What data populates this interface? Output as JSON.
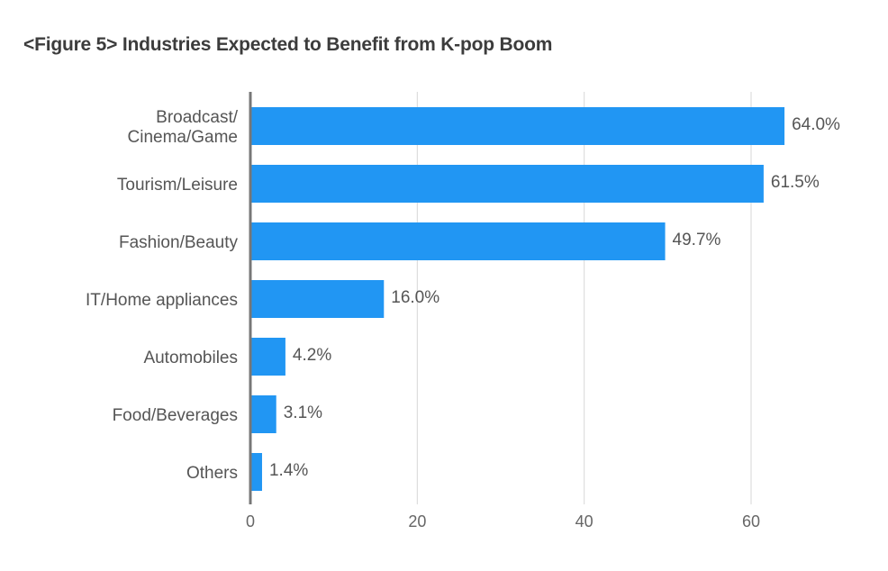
{
  "chart_data": {
    "type": "bar",
    "orientation": "horizontal",
    "title": "<Figure 5> Industries Expected to Benefit from K-pop Boom",
    "categories": [
      "Broadcast/\nCinema/Game",
      "Tourism/Leisure",
      "Fashion/Beauty",
      "IT/Home appliances",
      "Automobiles",
      "Food/Beverages",
      "Others"
    ],
    "values": [
      64.0,
      61.5,
      49.7,
      16.0,
      4.2,
      3.1,
      1.4
    ],
    "value_labels": [
      "64.0%",
      "61.5%",
      "49.7%",
      "16.0%",
      "4.2%",
      "3.1%",
      "1.4%"
    ],
    "x_ticks": [
      0,
      20,
      40,
      60
    ],
    "xlim": [
      0,
      70
    ],
    "grid": true,
    "bar_color": "#2196f3"
  }
}
